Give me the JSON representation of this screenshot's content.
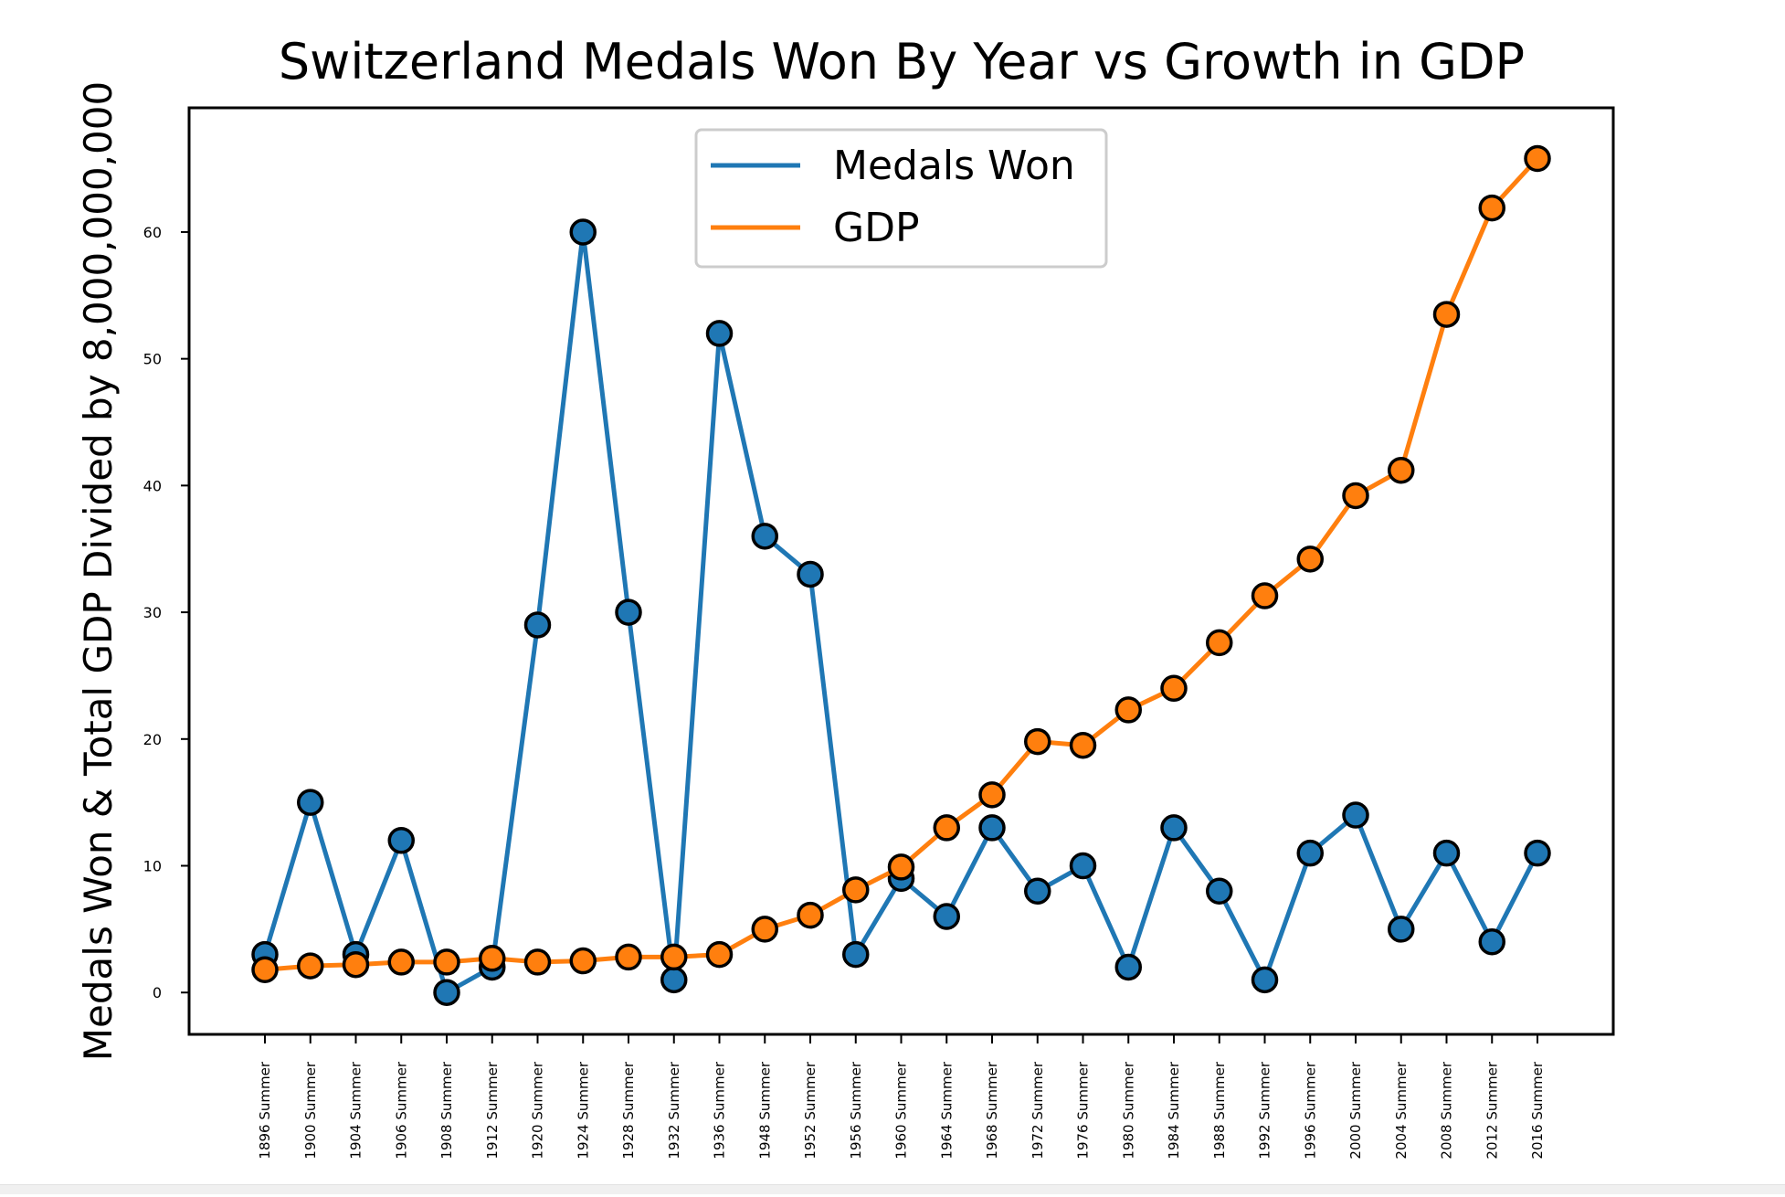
{
  "chart_data": {
    "type": "line",
    "title": "Switzerland Medals Won By Year vs Growth in GDP",
    "xlabel": "",
    "ylabel": "Medals Won & Total GDP Divided by 8,000,000,000",
    "categories": [
      "1896 Summer",
      "1900 Summer",
      "1904 Summer",
      "1906 Summer",
      "1908 Summer",
      "1912 Summer",
      "1920 Summer",
      "1924 Summer",
      "1928 Summer",
      "1932 Summer",
      "1936 Summer",
      "1948 Summer",
      "1952 Summer",
      "1956 Summer",
      "1960 Summer",
      "1964 Summer",
      "1968 Summer",
      "1972 Summer",
      "1976 Summer",
      "1980 Summer",
      "1984 Summer",
      "1988 Summer",
      "1992 Summer",
      "1996 Summer",
      "2000 Summer",
      "2004 Summer",
      "2008 Summer",
      "2012 Summer",
      "2016 Summer"
    ],
    "ylim": [
      -3.3,
      69.8
    ],
    "yticks": [
      0,
      10,
      20,
      30,
      40,
      50,
      60
    ],
    "grid": false,
    "legend": "upper center",
    "series": [
      {
        "name": "Medals Won",
        "color": "#1f77b4",
        "values": [
          3,
          15,
          3,
          12,
          0,
          2,
          29,
          60,
          30,
          1,
          52,
          36,
          33,
          3,
          9,
          6,
          13,
          8,
          10,
          2,
          13,
          8,
          1,
          11,
          14,
          5,
          11,
          4,
          11
        ]
      },
      {
        "name": "GDP",
        "color": "#ff7f0e",
        "values": [
          1.8,
          2.1,
          2.2,
          2.4,
          2.4,
          2.7,
          2.4,
          2.5,
          2.8,
          2.8,
          3.0,
          5.0,
          6.1,
          8.1,
          9.9,
          13.0,
          15.6,
          19.8,
          19.5,
          22.3,
          24.0,
          27.6,
          31.3,
          34.2,
          39.2,
          41.2,
          53.5,
          61.9,
          65.8
        ]
      }
    ]
  }
}
